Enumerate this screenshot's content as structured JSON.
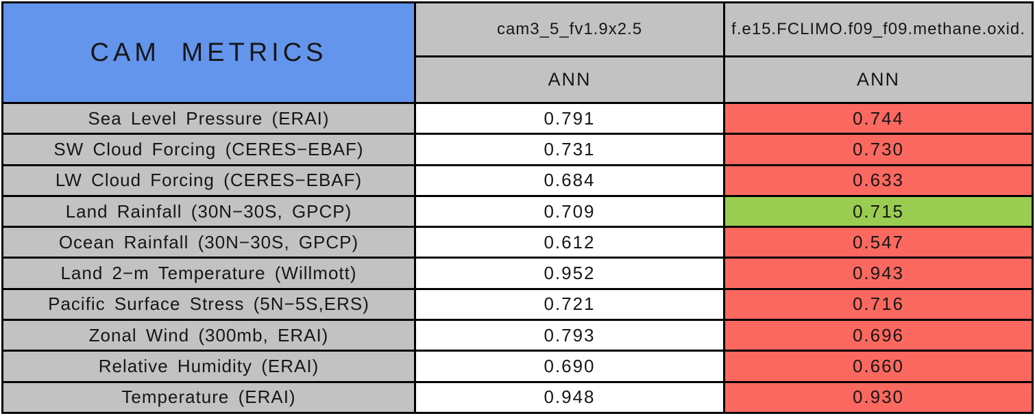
{
  "table": {
    "title": "CAM METRICS",
    "columns": [
      {
        "model": "cam3_5_fv1.9x2.5",
        "season": "ANN"
      },
      {
        "model": "f.e15.FCLIMO.f09_f09.methane.oxid.",
        "season": "ANN"
      }
    ],
    "rows": [
      {
        "label": "Sea Level Pressure (ERAI)",
        "values": [
          "0.791",
          "0.744"
        ],
        "colors": [
          "#FFFFFF",
          "#FB685F"
        ]
      },
      {
        "label": "SW Cloud Forcing (CERES−EBAF)",
        "values": [
          "0.731",
          "0.730"
        ],
        "colors": [
          "#FFFFFF",
          "#FB685F"
        ]
      },
      {
        "label": "LW Cloud Forcing (CERES−EBAF)",
        "values": [
          "0.684",
          "0.633"
        ],
        "colors": [
          "#FFFFFF",
          "#FB685F"
        ]
      },
      {
        "label": "Land Rainfall (30N−30S, GPCP)",
        "values": [
          "0.709",
          "0.715"
        ],
        "colors": [
          "#FFFFFF",
          "#9ACC51"
        ]
      },
      {
        "label": "Ocean Rainfall (30N−30S, GPCP)",
        "values": [
          "0.612",
          "0.547"
        ],
        "colors": [
          "#FFFFFF",
          "#FB685F"
        ]
      },
      {
        "label": "Land 2−m Temperature (Willmott)",
        "values": [
          "0.952",
          "0.943"
        ],
        "colors": [
          "#FFFFFF",
          "#FB685F"
        ]
      },
      {
        "label": "Pacific Surface Stress (5N−5S,ERS)",
        "values": [
          "0.721",
          "0.716"
        ],
        "colors": [
          "#FFFFFF",
          "#FB685F"
        ]
      },
      {
        "label": "Zonal Wind (300mb, ERAI)",
        "values": [
          "0.793",
          "0.696"
        ],
        "colors": [
          "#FFFFFF",
          "#FB685F"
        ]
      },
      {
        "label": "Relative Humidity (ERAI)",
        "values": [
          "0.690",
          "0.660"
        ],
        "colors": [
          "#FFFFFF",
          "#FB685F"
        ]
      },
      {
        "label": "Temperature (ERAI)",
        "values": [
          "0.948",
          "0.930"
        ],
        "colors": [
          "#FFFFFF",
          "#FB685F"
        ]
      }
    ],
    "colors": {
      "header_blue": "#6495ED",
      "cell_gray": "#C2C2C2",
      "worse_red": "#FB685F",
      "better_green": "#9ACC51",
      "neutral_white": "#FFFFFF",
      "border_black": "#000000"
    }
  },
  "chart_data": {
    "type": "table",
    "title": "CAM METRICS",
    "columns": [
      {
        "model": "cam3_5_fv1.9x2.5",
        "season": "ANN"
      },
      {
        "model": "f.e15.FCLIMO.f09_f09.methane.oxid.",
        "season": "ANN"
      }
    ],
    "metrics": [
      "Sea Level Pressure (ERAI)",
      "SW Cloud Forcing (CERES−EBAF)",
      "LW Cloud Forcing (CERES−EBAF)",
      "Land Rainfall (30N−30S, GPCP)",
      "Ocean Rainfall (30N−30S, GPCP)",
      "Land 2−m Temperature (Willmott)",
      "Pacific Surface Stress (5N−5S,ERS)",
      "Zonal Wind (300mb, ERAI)",
      "Relative Humidity (ERAI)",
      "Temperature (ERAI)"
    ],
    "values": [
      [
        0.791,
        0.744
      ],
      [
        0.731,
        0.73
      ],
      [
        0.684,
        0.633
      ],
      [
        0.709,
        0.715
      ],
      [
        0.612,
        0.547
      ],
      [
        0.952,
        0.943
      ],
      [
        0.721,
        0.716
      ],
      [
        0.793,
        0.696
      ],
      [
        0.69,
        0.66
      ],
      [
        0.948,
        0.93
      ]
    ],
    "cell_status_column2": [
      "worse",
      "worse",
      "worse",
      "better",
      "worse",
      "worse",
      "worse",
      "worse",
      "worse",
      "worse"
    ],
    "legend": {
      "worse": "red",
      "better": "green",
      "reference_column": "white"
    }
  }
}
